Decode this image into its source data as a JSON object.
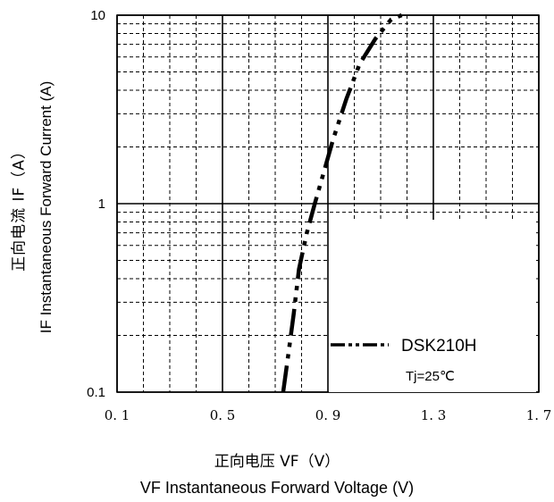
{
  "chart_data": {
    "type": "line",
    "title": "",
    "xlabel_cn": "正向电压 VF（V）",
    "xlabel": "VF  Instantaneous Forward Voltage (V)",
    "ylabel_cn": "正向电流 IF（A）",
    "ylabel": "IF Instantaneous Forward Current (A)",
    "xlim": [
      0.1,
      1.7
    ],
    "ylim": [
      0.1,
      10
    ],
    "yscale": "log",
    "x_ticks": [
      "0.1",
      "0.5",
      "0.9",
      "1.3",
      "1.7"
    ],
    "y_ticks": [
      "0.1",
      "1",
      "10"
    ],
    "grid": true,
    "legend_position": "bottom-right",
    "series": [
      {
        "name": "DSK210H",
        "style": "dash-dot-dot",
        "color": "#000000",
        "x": [
          0.73,
          0.75,
          0.77,
          0.79,
          0.82,
          0.85,
          0.88,
          0.92,
          0.97,
          1.02,
          1.08,
          1.14,
          1.18
        ],
        "y": [
          0.1,
          0.16,
          0.26,
          0.45,
          0.7,
          1.0,
          1.4,
          2.2,
          3.6,
          5.5,
          7.5,
          9.5,
          10
        ]
      }
    ],
    "annotation": "Tj=25℃"
  }
}
